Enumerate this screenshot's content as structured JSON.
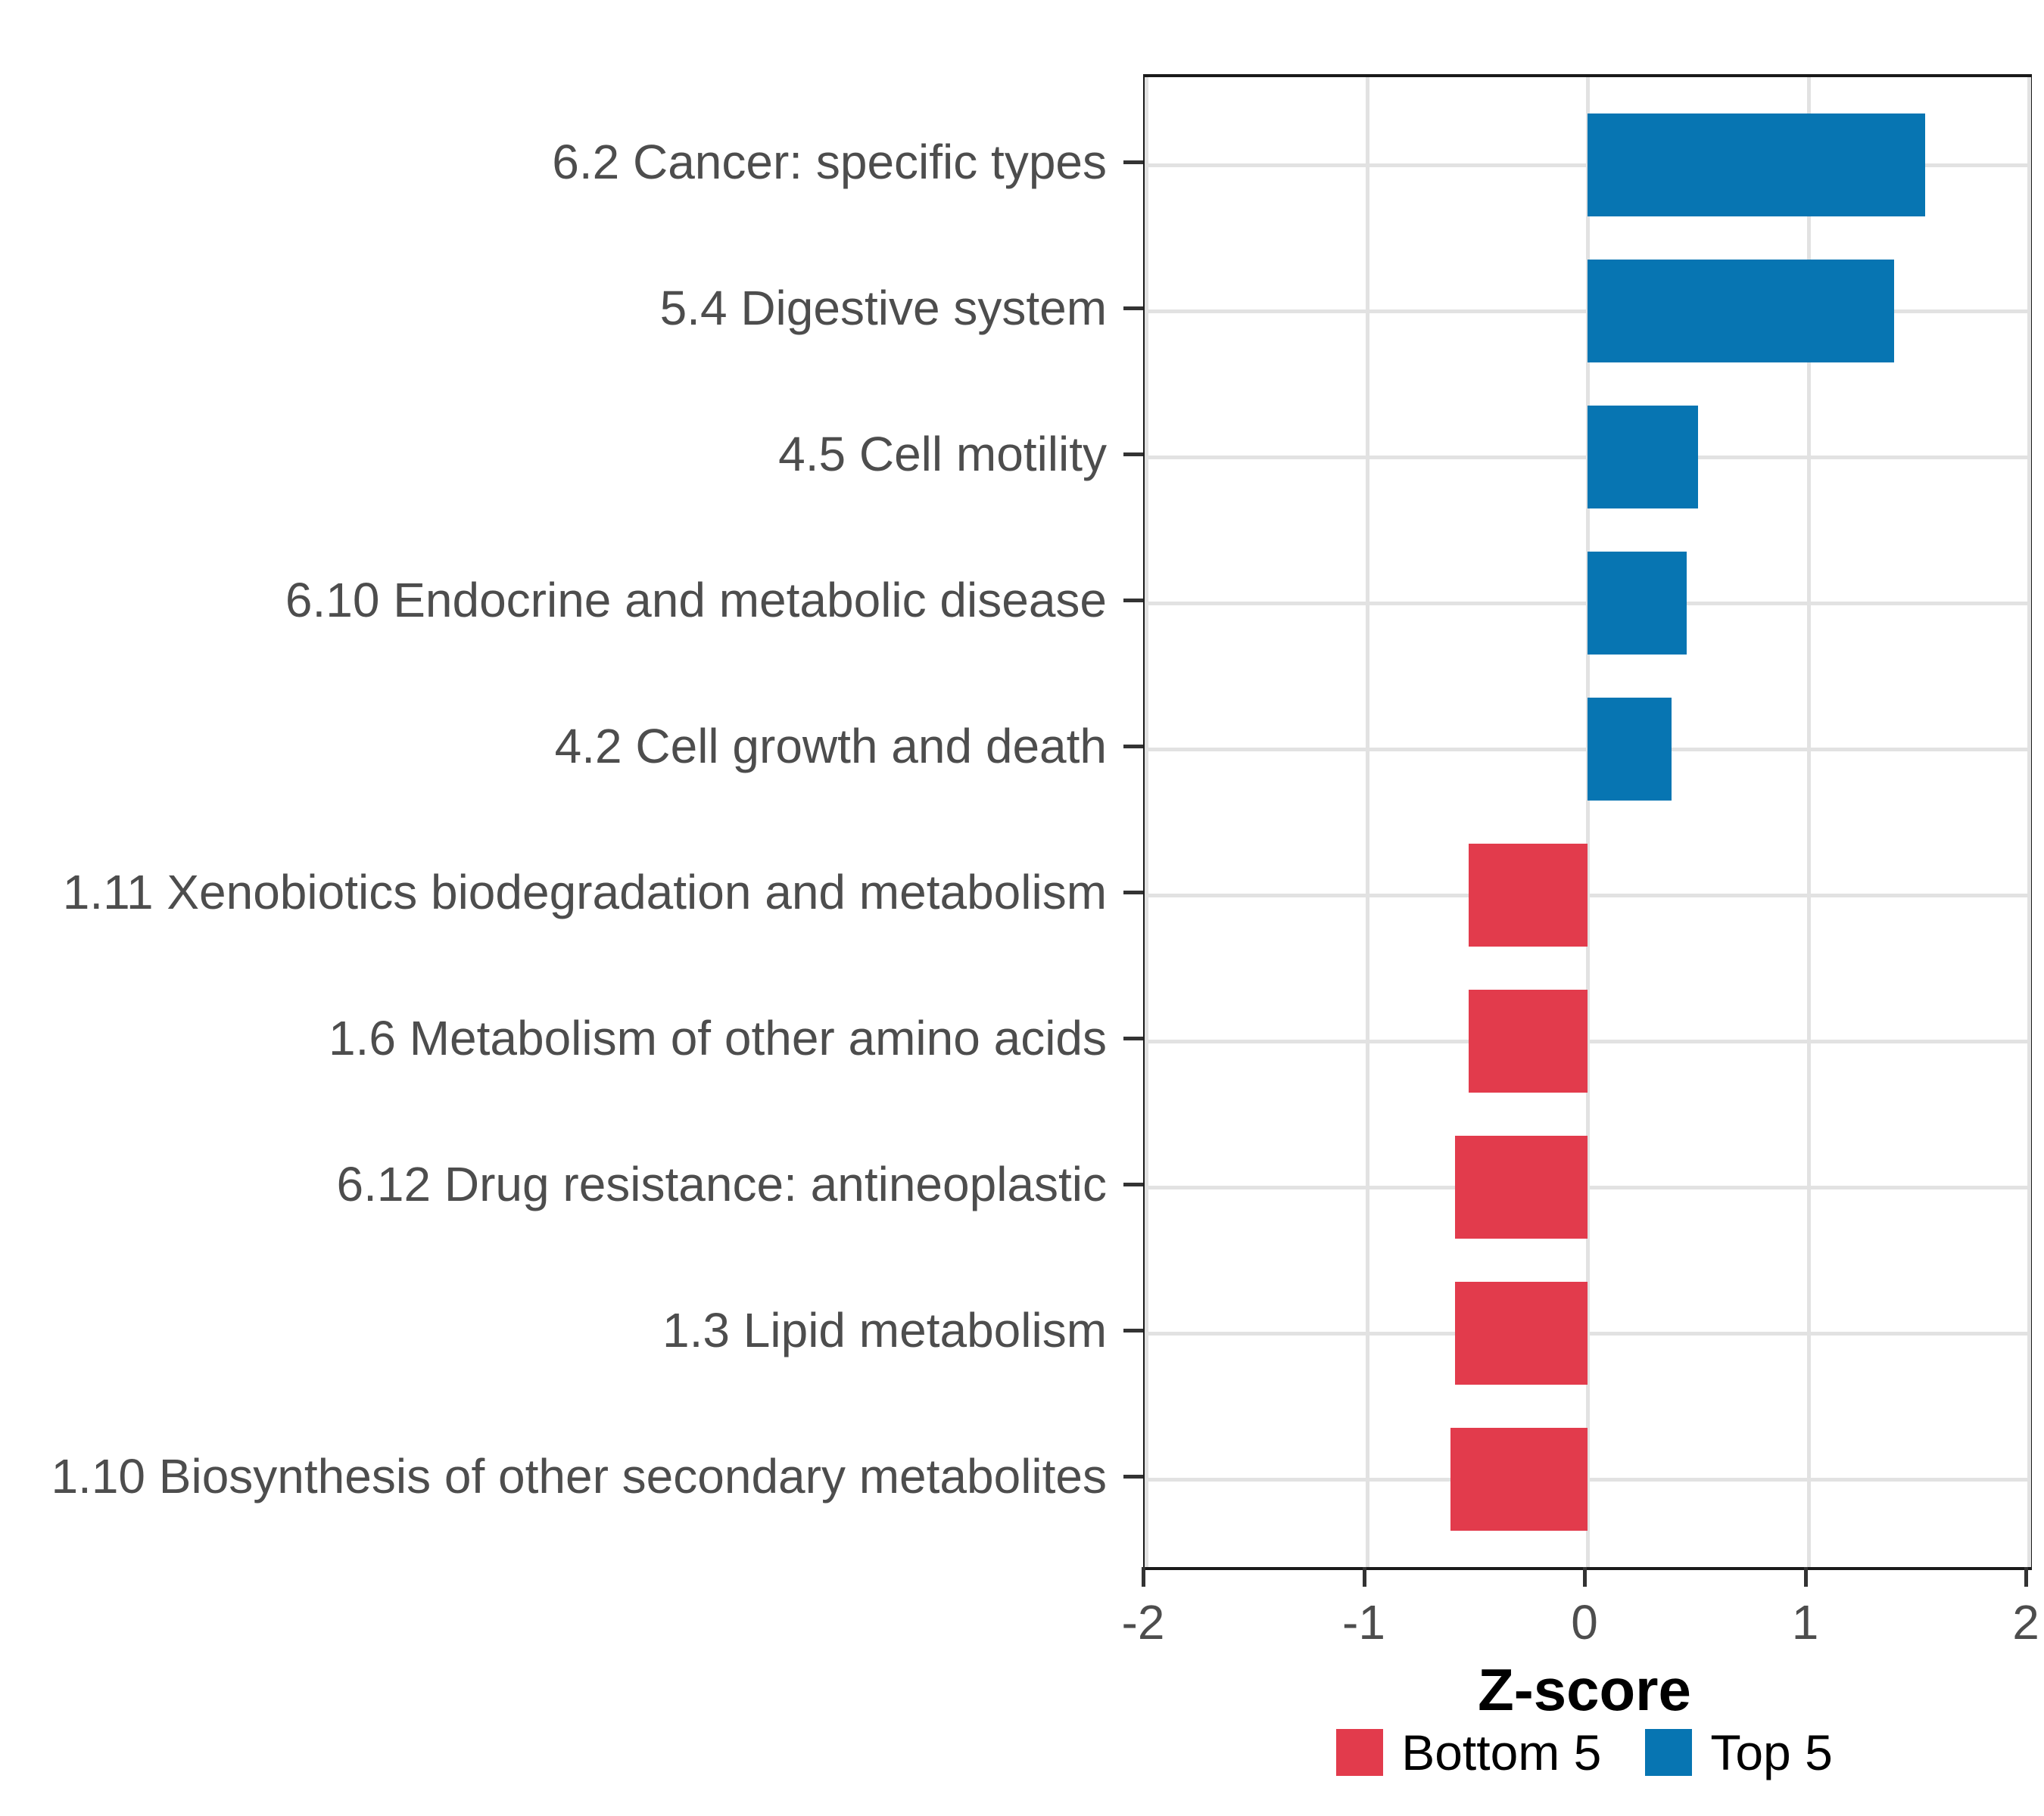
{
  "chart_data": {
    "type": "bar",
    "orientation": "horizontal",
    "title": "",
    "xlabel": "Z-score",
    "ylabel": "",
    "xlim": [
      -2,
      2
    ],
    "x_ticks": [
      -2,
      -1,
      0,
      1,
      2
    ],
    "grid": "major-only",
    "legend_position": "bottom",
    "categories": [
      "6.2 Cancer: specific types",
      "5.4 Digestive system",
      "4.5 Cell motility",
      "6.10 Endocrine and metabolic disease",
      "4.2 Cell growth and death",
      "1.11 Xenobiotics biodegradation and metabolism",
      "1.6 Metabolism of other amino acids",
      "6.12 Drug resistance: antineoplastic",
      "1.3 Lipid metabolism",
      "1.10 Biosynthesis of other secondary metabolites"
    ],
    "values": [
      1.53,
      1.39,
      0.5,
      0.45,
      0.38,
      -0.54,
      -0.54,
      -0.6,
      -0.6,
      -0.62
    ],
    "groups": [
      "Top 5",
      "Top 5",
      "Top 5",
      "Top 5",
      "Top 5",
      "Bottom 5",
      "Bottom 5",
      "Bottom 5",
      "Bottom 5",
      "Bottom 5"
    ],
    "legend": [
      {
        "label": "Bottom 5",
        "color": "#E23B4C"
      },
      {
        "label": "Top 5",
        "color": "#0775B2"
      }
    ]
  },
  "colors": {
    "top5_bar": "#0775B2",
    "bottom5_bar": "#E23B4C",
    "gridline": "#E2E2E2",
    "panel_border": "#1A1A1A",
    "tick_mark": "#333333",
    "axis_text": "#4D4D4D",
    "axis_title": "#000000"
  }
}
